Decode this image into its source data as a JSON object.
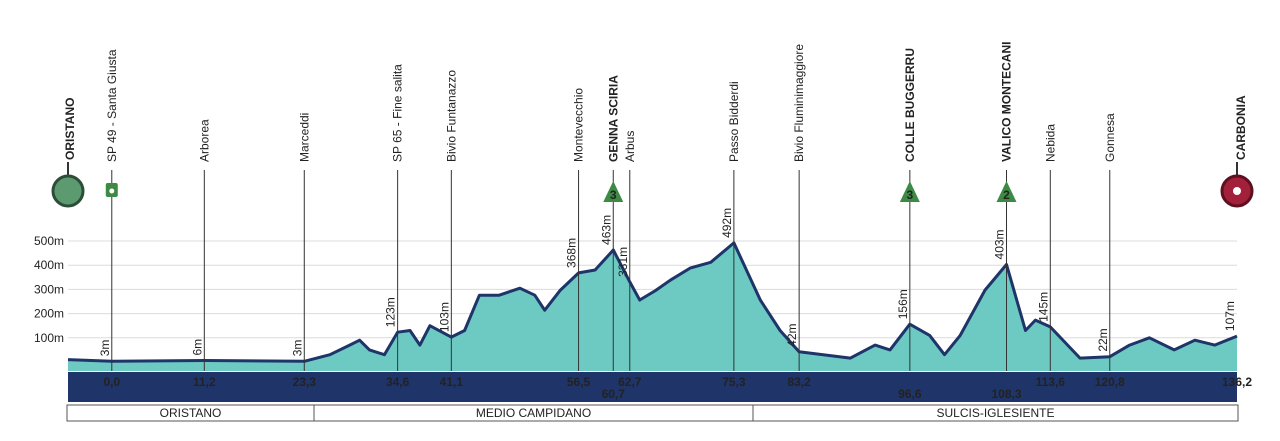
{
  "chart_data": {
    "type": "area",
    "start": "ORISTANO",
    "finish": "CARBONIA",
    "color": "#6ccac3",
    "line_color": "#1f3468",
    "xlim": [
      -5.3,
      136.2
    ],
    "ylim": [
      0,
      500
    ],
    "yticks": [
      {
        "value": 100,
        "label": "100m"
      },
      {
        "value": 200,
        "label": "200m"
      },
      {
        "value": 300,
        "label": "300m"
      },
      {
        "value": 400,
        "label": "400m"
      },
      {
        "value": 500,
        "label": "500m"
      }
    ],
    "grid": true,
    "x": [
      -5.3,
      0,
      11.2,
      23.3,
      26.4,
      28.8,
      30.0,
      31.2,
      33.0,
      34.6,
      36.1,
      37.3,
      38.5,
      41.1,
      42.7,
      44.5,
      46.9,
      49.4,
      51.2,
      52.4,
      54.3,
      56.5,
      58.5,
      60.7,
      62.7,
      63.9,
      65.8,
      67.6,
      70.0,
      72.5,
      75.3,
      78.5,
      80.9,
      83.2,
      89.4,
      92.4,
      94.2,
      96.6,
      99.0,
      100.8,
      102.7,
      105.7,
      108.3,
      110.6,
      111.8,
      113.6,
      117.2,
      120.8,
      123.2,
      125.6,
      128.6,
      131.1,
      133.5,
      136.2
    ],
    "values": [
      10,
      3,
      6,
      3,
      30,
      70,
      90,
      50,
      30,
      123,
      130,
      70,
      150,
      103,
      130,
      276,
      276,
      305,
      276,
      214,
      297,
      368,
      380,
      463,
      331,
      256,
      295,
      338,
      388,
      412,
      492,
      256,
      130,
      42,
      16,
      70,
      50,
      156,
      110,
      30,
      110,
      297,
      403,
      130,
      173,
      145,
      16,
      22,
      70,
      100,
      50,
      90,
      70,
      107
    ],
    "waypoints": [
      {
        "name": "SP 49 - Santa Giusta",
        "km": 0,
        "km_label": "0,0",
        "elevation": 3,
        "elevation_label": "3m"
      },
      {
        "name": "Arborea",
        "km": 11.2,
        "km_label": "11,2",
        "elevation": 6,
        "elevation_label": "6m"
      },
      {
        "name": "Marceddi",
        "km": 23.3,
        "km_label": "23,3",
        "elevation": 3,
        "elevation_label": "3m"
      },
      {
        "name": "SP 65 - Fine salita",
        "km": 34.6,
        "km_label": "34,6",
        "elevation": 123,
        "elevation_label": "123m"
      },
      {
        "name": "Bivio Funtanazzo",
        "km": 41.1,
        "km_label": "41,1",
        "elevation": 103,
        "elevation_label": "103m"
      },
      {
        "name": "Montevecchio",
        "km": 56.5,
        "km_label": "56,5",
        "elevation": 368,
        "elevation_label": "368m"
      },
      {
        "name": "GENNA SCIRIA",
        "km": 60.7,
        "km_label": "60,7",
        "elevation": 463,
        "elevation_label": "463m",
        "climb": 3
      },
      {
        "name": "Arbus",
        "km": 62.7,
        "km_label": "62,7",
        "elevation": 331,
        "elevation_label": "331m"
      },
      {
        "name": "Passo Bidderdi",
        "km": 75.3,
        "km_label": "75,3",
        "elevation": 492,
        "elevation_label": "492m"
      },
      {
        "name": "Bivio Fluminimaggiore",
        "km": 83.2,
        "km_label": "83,2",
        "elevation": 42,
        "elevation_label": "42m"
      },
      {
        "name": "COLLE BUGGERRU",
        "km": 96.6,
        "km_label": "96,6",
        "elevation": 156,
        "elevation_label": "156m",
        "climb": 3
      },
      {
        "name": "VALICO MONTECANI",
        "km": 108.3,
        "km_label": "108,3",
        "elevation": 403,
        "elevation_label": "403m",
        "climb": 2
      },
      {
        "name": "Nebida",
        "km": 113.6,
        "km_label": "113,6",
        "elevation": 145,
        "elevation_label": "145m"
      },
      {
        "name": "Gonnesa",
        "km": 120.8,
        "km_label": "120,8",
        "elevation": 22,
        "elevation_label": "22m"
      },
      {
        "name": "CARBONIA",
        "km": 136.2,
        "km_label": "136,2",
        "elevation": 107,
        "elevation_label": "107m"
      }
    ],
    "regions": [
      "ORISTANO",
      "MEDIO CAMPIDANO",
      "SULCIS-IGLESIENTE"
    ]
  }
}
